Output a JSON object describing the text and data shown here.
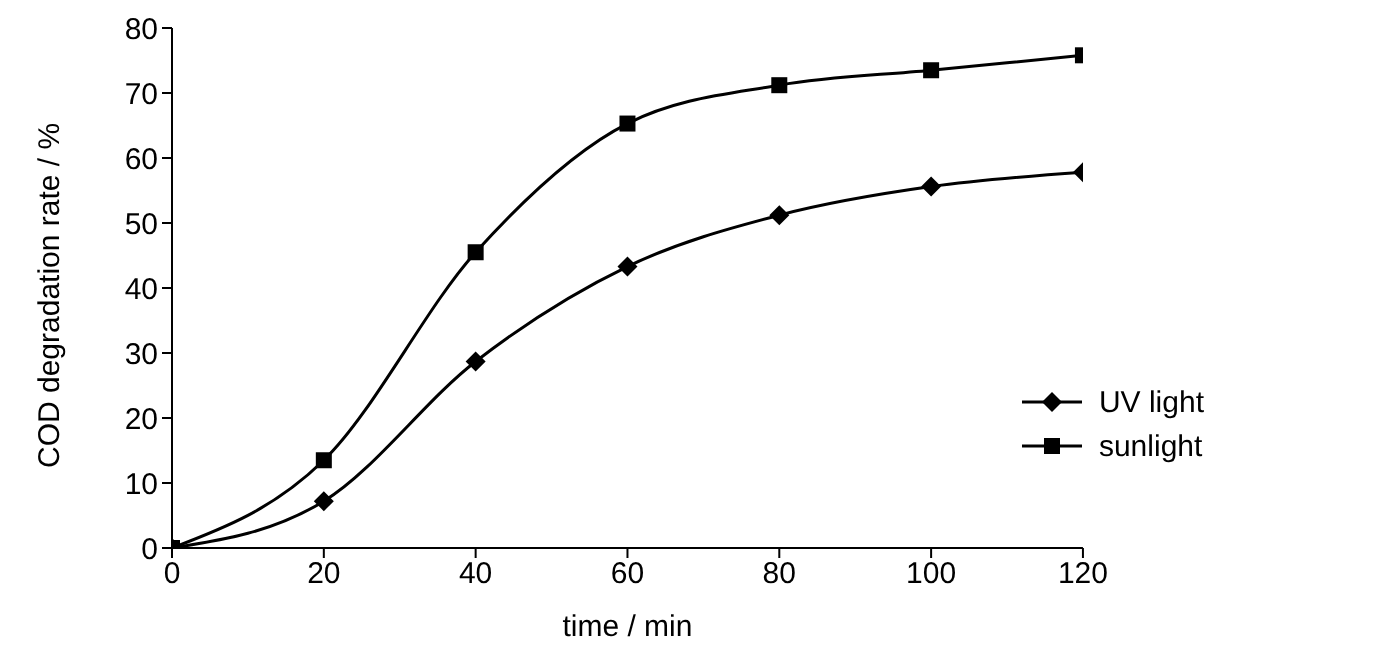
{
  "chart_data": {
    "type": "line",
    "xlabel": "time / min",
    "ylabel": "COD degradation rate / %",
    "x": [
      0,
      20,
      40,
      60,
      80,
      100,
      120
    ],
    "series": [
      {
        "name": "UV light",
        "color": "#000000",
        "marker": "diamond",
        "values": [
          0,
          7.2,
          28.7,
          43.3,
          51.2,
          55.6,
          57.8
        ]
      },
      {
        "name": "sunlight",
        "color": "#000000",
        "marker": "square",
        "values": [
          0,
          13.5,
          45.5,
          65.3,
          71.2,
          73.5,
          75.8
        ]
      }
    ],
    "xlim": [
      0,
      120
    ],
    "xticks": [
      0,
      20,
      40,
      60,
      80,
      100,
      120
    ],
    "ylim": [
      0,
      80
    ],
    "yticks": [
      0,
      10,
      20,
      30,
      40,
      50,
      60,
      70,
      80
    ],
    "grid": false,
    "legend": "bottom right",
    "line_style": "solid"
  }
}
